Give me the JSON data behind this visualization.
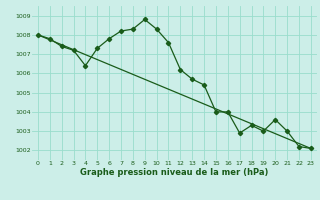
{
  "title": "Graphe pression niveau de la mer (hPa)",
  "bg_color": "#cceee8",
  "grid_color": "#99ddcc",
  "line_color": "#1a5c1a",
  "series1_x": [
    0,
    1,
    2,
    3,
    4,
    5,
    6,
    7,
    8,
    9,
    10,
    11,
    12,
    13,
    14,
    15,
    16,
    17,
    18,
    19,
    20,
    21,
    22,
    23
  ],
  "series1_y": [
    1008.0,
    1007.8,
    1007.4,
    1007.2,
    1006.4,
    1007.3,
    1007.8,
    1008.2,
    1008.3,
    1008.8,
    1008.3,
    1007.6,
    1006.2,
    1005.7,
    1005.4,
    1004.0,
    1004.0,
    1002.9,
    1003.3,
    1003.0,
    1003.6,
    1003.0,
    1002.2,
    1002.1
  ],
  "series2_x": [
    0,
    23
  ],
  "series2_y": [
    1008.0,
    1002.1
  ],
  "xlim": [
    -0.5,
    23.5
  ],
  "ylim": [
    1001.5,
    1009.5
  ],
  "yticks": [
    1002,
    1003,
    1004,
    1005,
    1006,
    1007,
    1008,
    1009
  ],
  "xticks": [
    0,
    1,
    2,
    3,
    4,
    5,
    6,
    7,
    8,
    9,
    10,
    11,
    12,
    13,
    14,
    15,
    16,
    17,
    18,
    19,
    20,
    21,
    22,
    23
  ],
  "xlabel_fontsize": 6.0,
  "tick_fontsize": 4.5,
  "line_width": 0.9,
  "marker_size": 2.2
}
